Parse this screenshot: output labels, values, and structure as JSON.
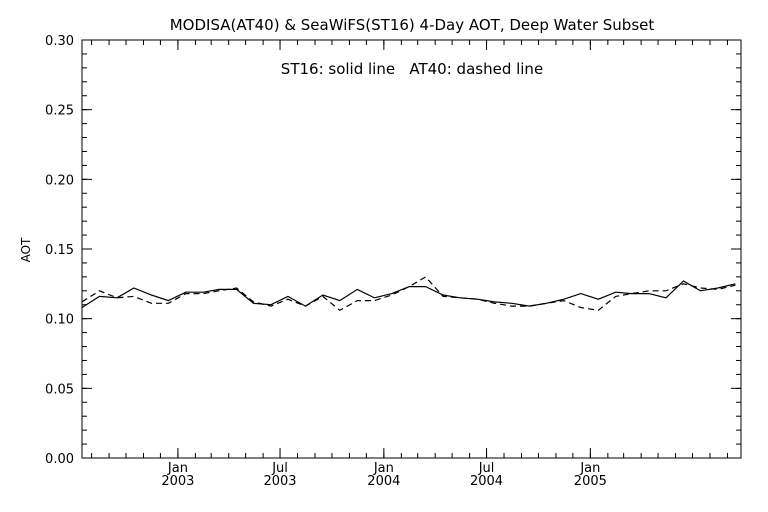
{
  "chart_data": {
    "type": "line",
    "title": "MODISA(AT40) & SeaWiFS(ST16) 4-Day AOT, Deep Water Subset",
    "annotation": "ST16: solid line   AT40: dashed line",
    "ylabel": "AOT",
    "xlabel": "",
    "ylim": [
      0.0,
      0.3
    ],
    "y_ticks": [
      "0.00",
      "0.05",
      "0.10",
      "0.15",
      "0.20",
      "0.25",
      "0.30"
    ],
    "y_tick_values": [
      0.0,
      0.05,
      0.1,
      0.15,
      0.2,
      0.25,
      0.3
    ],
    "xlim": [
      "2002-07-15",
      "2005-09-25"
    ],
    "x_ticks": [
      {
        "date": "2003-01-01",
        "label1": "Jan",
        "label2": "2003"
      },
      {
        "date": "2003-07-01",
        "label1": "Jul",
        "label2": "2003"
      },
      {
        "date": "2004-01-01",
        "label1": "Jan",
        "label2": "2004"
      },
      {
        "date": "2004-07-01",
        "label1": "Jul",
        "label2": "2004"
      },
      {
        "date": "2005-01-01",
        "label1": "Jan",
        "label2": "2005"
      }
    ],
    "grid": false,
    "series": [
      {
        "name": "ST16",
        "style": "solid",
        "color": "#000000",
        "x": [
          "2002-07-15",
          "2002-08-15",
          "2002-09-15",
          "2002-10-15",
          "2002-11-15",
          "2002-12-15",
          "2003-01-15",
          "2003-02-15",
          "2003-03-15",
          "2003-04-15",
          "2003-05-15",
          "2003-06-15",
          "2003-07-15",
          "2003-08-15",
          "2003-09-15",
          "2003-10-15",
          "2003-11-15",
          "2003-12-15",
          "2004-01-15",
          "2004-02-15",
          "2004-03-15",
          "2004-04-15",
          "2004-05-15",
          "2004-06-15",
          "2004-07-15",
          "2004-08-15",
          "2004-09-15",
          "2004-10-15",
          "2004-11-15",
          "2004-12-15",
          "2005-01-15",
          "2005-02-15",
          "2005-03-15",
          "2005-04-15",
          "2005-05-15",
          "2005-06-15",
          "2005-07-15",
          "2005-08-15",
          "2005-09-15"
        ],
        "values": [
          0.108,
          0.116,
          0.115,
          0.122,
          0.117,
          0.113,
          0.119,
          0.119,
          0.121,
          0.121,
          0.111,
          0.11,
          0.116,
          0.109,
          0.117,
          0.113,
          0.121,
          0.115,
          0.118,
          0.123,
          0.123,
          0.117,
          0.115,
          0.114,
          0.112,
          0.111,
          0.109,
          0.111,
          0.114,
          0.118,
          0.114,
          0.119,
          0.118,
          0.118,
          0.115,
          0.127,
          0.12,
          0.122,
          0.125
        ]
      },
      {
        "name": "AT40",
        "style": "dashed",
        "color": "#000000",
        "x": [
          "2002-07-15",
          "2002-08-15",
          "2002-09-15",
          "2002-10-15",
          "2002-11-15",
          "2002-12-15",
          "2003-01-15",
          "2003-02-15",
          "2003-03-15",
          "2003-04-15",
          "2003-05-15",
          "2003-06-15",
          "2003-07-15",
          "2003-08-15",
          "2003-09-15",
          "2003-10-15",
          "2003-11-15",
          "2003-12-15",
          "2004-01-15",
          "2004-02-15",
          "2004-03-15",
          "2004-04-15",
          "2004-05-15",
          "2004-06-15",
          "2004-07-15",
          "2004-08-15",
          "2004-09-15",
          "2004-10-15",
          "2004-11-15",
          "2004-12-15",
          "2005-01-15",
          "2005-02-15",
          "2005-03-15",
          "2005-04-15",
          "2005-05-15",
          "2005-06-15",
          "2005-07-15",
          "2005-08-15",
          "2005-09-15"
        ],
        "values": [
          0.112,
          0.12,
          0.115,
          0.116,
          0.111,
          0.111,
          0.118,
          0.118,
          0.12,
          0.122,
          0.112,
          0.109,
          0.114,
          0.109,
          0.116,
          0.106,
          0.113,
          0.113,
          0.117,
          0.123,
          0.13,
          0.116,
          0.115,
          0.114,
          0.111,
          0.109,
          0.109,
          0.111,
          0.113,
          0.108,
          0.106,
          0.116,
          0.118,
          0.12,
          0.12,
          0.125,
          0.122,
          0.121,
          0.124
        ]
      }
    ]
  }
}
